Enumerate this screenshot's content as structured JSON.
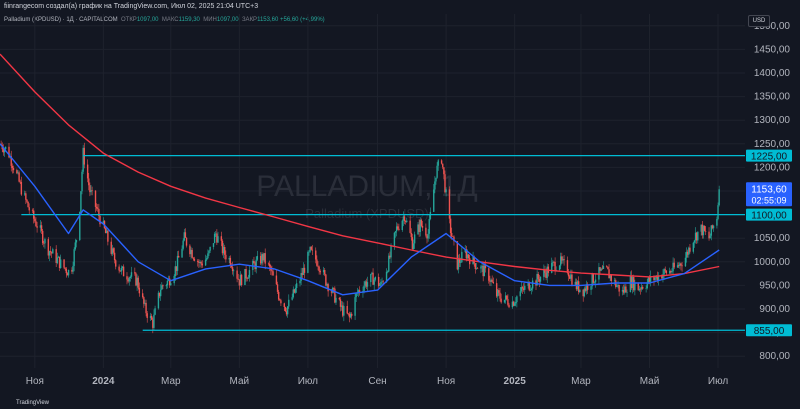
{
  "header": {
    "caption": "fiinrangecom создал(а) график на TradingView.com, Июл 02, 2025 21:04 UTC+3"
  },
  "legend": {
    "symbol": "Palladium (XPDUSD) · 1Д · CAPITALCOM",
    "open_label": "ОТКР",
    "open_value": "1097,00",
    "high_label": "МАКС",
    "high_value": "1159,30",
    "low_label": "МИН",
    "low_value": "1097,00",
    "close_label": "ЗАКР",
    "close_value": "1153,60",
    "change": "+56,60 (+4,99%)"
  },
  "currency_button": "USD",
  "watermark": {
    "title": "PALLADIUM, 1Д",
    "subtitle": "Palladium (XPDUSD)"
  },
  "footer": {
    "brand": "TradingView"
  },
  "colors": {
    "background": "#131722",
    "up": "#26a69a",
    "down": "#ef5350",
    "ma_fast": "#2962ff",
    "ma_slow": "#f23645",
    "level_line": "#00bcd4",
    "price_tag": "#2962ff"
  },
  "icons": [
    "tradingview-logo-icon"
  ],
  "chart_data": {
    "type": "candlestick",
    "instrument": "Palladium (XPDUSD)",
    "timeframe": "1Д",
    "y_axis": {
      "range": [
        775,
        1525
      ],
      "ticks": [
        "800,00",
        "850,00",
        "900,00",
        "950,00",
        "1000,00",
        "1050,00",
        "1100,00",
        "1150,00",
        "1200,00",
        "1250,00",
        "1300,00",
        "1350,00",
        "1400,00",
        "1450,00",
        "1500,00"
      ]
    },
    "x_axis": {
      "range": [
        "2023-10-01",
        "2025-07-25"
      ],
      "ticks": [
        {
          "date": "2023-11-01",
          "label": "Ноя"
        },
        {
          "date": "2024-01-01",
          "label": "2024"
        },
        {
          "date": "2024-03-01",
          "label": "Мар"
        },
        {
          "date": "2024-05-01",
          "label": "Май"
        },
        {
          "date": "2024-07-01",
          "label": "Июл"
        },
        {
          "date": "2024-09-01",
          "label": "Сен"
        },
        {
          "date": "2024-11-01",
          "label": "Ноя"
        },
        {
          "date": "2025-01-01",
          "label": "2025"
        },
        {
          "date": "2025-03-01",
          "label": "Мар"
        },
        {
          "date": "2025-05-01",
          "label": "Май"
        },
        {
          "date": "2025-07-01",
          "label": "Июл"
        }
      ]
    },
    "close_series": [
      [
        "2023-10-01",
        1250
      ],
      [
        "2023-10-08",
        1235
      ],
      [
        "2023-10-15",
        1190
      ],
      [
        "2023-10-22",
        1140
      ],
      [
        "2023-10-29",
        1100
      ],
      [
        "2023-11-05",
        1070
      ],
      [
        "2023-11-12",
        1030
      ],
      [
        "2023-11-19",
        1010
      ],
      [
        "2023-11-26",
        990
      ],
      [
        "2023-12-03",
        975
      ],
      [
        "2023-12-10",
        1080
      ],
      [
        "2023-12-14",
        1230
      ],
      [
        "2023-12-20",
        1150
      ],
      [
        "2023-12-27",
        1105
      ],
      [
        "2024-01-03",
        1060
      ],
      [
        "2024-01-10",
        1010
      ],
      [
        "2024-01-17",
        980
      ],
      [
        "2024-01-24",
        970
      ],
      [
        "2024-01-31",
        960
      ],
      [
        "2024-02-07",
        900
      ],
      [
        "2024-02-14",
        870
      ],
      [
        "2024-02-21",
        945
      ],
      [
        "2024-02-28",
        960
      ],
      [
        "2024-03-06",
        990
      ],
      [
        "2024-03-13",
        1050
      ],
      [
        "2024-03-20",
        1020
      ],
      [
        "2024-03-27",
        995
      ],
      [
        "2024-04-03",
        1010
      ],
      [
        "2024-04-10",
        1060
      ],
      [
        "2024-04-17",
        1020
      ],
      [
        "2024-04-24",
        1000
      ],
      [
        "2024-05-01",
        960
      ],
      [
        "2024-05-08",
        975
      ],
      [
        "2024-05-15",
        995
      ],
      [
        "2024-05-22",
        1010
      ],
      [
        "2024-05-29",
        980
      ],
      [
        "2024-06-05",
        930
      ],
      [
        "2024-06-12",
        900
      ],
      [
        "2024-06-19",
        935
      ],
      [
        "2024-06-26",
        975
      ],
      [
        "2024-07-03",
        1020
      ],
      [
        "2024-07-10",
        1000
      ],
      [
        "2024-07-17",
        960
      ],
      [
        "2024-07-24",
        930
      ],
      [
        "2024-07-31",
        900
      ],
      [
        "2024-08-07",
        880
      ],
      [
        "2024-08-14",
        935
      ],
      [
        "2024-08-21",
        955
      ],
      [
        "2024-08-28",
        965
      ],
      [
        "2024-09-04",
        950
      ],
      [
        "2024-09-11",
        1000
      ],
      [
        "2024-09-18",
        1070
      ],
      [
        "2024-09-25",
        1100
      ],
      [
        "2024-10-02",
        1040
      ],
      [
        "2024-10-09",
        1080
      ],
      [
        "2024-10-16",
        1060
      ],
      [
        "2024-10-23",
        1190
      ],
      [
        "2024-10-28",
        1220
      ],
      [
        "2024-11-04",
        1080
      ],
      [
        "2024-11-11",
        995
      ],
      [
        "2024-11-18",
        1020
      ],
      [
        "2024-11-25",
        1000
      ],
      [
        "2024-12-02",
        985
      ],
      [
        "2024-12-09",
        970
      ],
      [
        "2024-12-16",
        930
      ],
      [
        "2024-12-23",
        920
      ],
      [
        "2024-12-30",
        915
      ],
      [
        "2025-01-06",
        935
      ],
      [
        "2025-01-13",
        950
      ],
      [
        "2025-01-20",
        960
      ],
      [
        "2025-01-27",
        975
      ],
      [
        "2025-02-03",
        990
      ],
      [
        "2025-02-10",
        1000
      ],
      [
        "2025-02-17",
        985
      ],
      [
        "2025-02-24",
        950
      ],
      [
        "2025-03-03",
        940
      ],
      [
        "2025-03-10",
        960
      ],
      [
        "2025-03-17",
        975
      ],
      [
        "2025-03-24",
        980
      ],
      [
        "2025-03-31",
        955
      ],
      [
        "2025-04-07",
        935
      ],
      [
        "2025-04-14",
        960
      ],
      [
        "2025-04-21",
        945
      ],
      [
        "2025-04-28",
        955
      ],
      [
        "2025-05-05",
        965
      ],
      [
        "2025-05-12",
        975
      ],
      [
        "2025-05-19",
        980
      ],
      [
        "2025-05-26",
        990
      ],
      [
        "2025-06-02",
        1010
      ],
      [
        "2025-06-09",
        1050
      ],
      [
        "2025-06-16",
        1070
      ],
      [
        "2025-06-23",
        1050
      ],
      [
        "2025-06-30",
        1097
      ],
      [
        "2025-07-02",
        1153.6
      ]
    ],
    "ma_fast": [
      [
        "2023-10-01",
        1250
      ],
      [
        "2023-11-01",
        1160
      ],
      [
        "2023-12-01",
        1060
      ],
      [
        "2023-12-14",
        1110
      ],
      [
        "2024-01-01",
        1080
      ],
      [
        "2024-02-01",
        1000
      ],
      [
        "2024-03-01",
        960
      ],
      [
        "2024-04-01",
        985
      ],
      [
        "2024-05-01",
        995
      ],
      [
        "2024-06-01",
        985
      ],
      [
        "2024-07-01",
        960
      ],
      [
        "2024-08-01",
        930
      ],
      [
        "2024-09-01",
        940
      ],
      [
        "2024-10-01",
        1010
      ],
      [
        "2024-11-01",
        1060
      ],
      [
        "2024-12-01",
        1000
      ],
      [
        "2025-01-01",
        960
      ],
      [
        "2025-02-01",
        950
      ],
      [
        "2025-03-01",
        950
      ],
      [
        "2025-04-01",
        955
      ],
      [
        "2025-05-01",
        955
      ],
      [
        "2025-06-01",
        975
      ],
      [
        "2025-07-02",
        1025
      ]
    ],
    "ma_slow": [
      [
        "2023-10-01",
        1440
      ],
      [
        "2023-11-01",
        1360
      ],
      [
        "2023-12-01",
        1290
      ],
      [
        "2024-01-01",
        1230
      ],
      [
        "2024-02-01",
        1190
      ],
      [
        "2024-03-01",
        1160
      ],
      [
        "2024-04-01",
        1135
      ],
      [
        "2024-05-01",
        1115
      ],
      [
        "2024-06-01",
        1095
      ],
      [
        "2024-07-01",
        1075
      ],
      [
        "2024-08-01",
        1055
      ],
      [
        "2024-09-01",
        1040
      ],
      [
        "2024-10-01",
        1025
      ],
      [
        "2024-11-01",
        1010
      ],
      [
        "2024-12-01",
        1000
      ],
      [
        "2025-01-01",
        990
      ],
      [
        "2025-02-01",
        982
      ],
      [
        "2025-03-01",
        976
      ],
      [
        "2025-04-01",
        972
      ],
      [
        "2025-05-01",
        968
      ],
      [
        "2025-06-01",
        975
      ],
      [
        "2025-07-02",
        990
      ]
    ],
    "levels": [
      {
        "value": 1225,
        "label": "1225,00",
        "from": "2023-12-14"
      },
      {
        "value": 1100,
        "label": "1100,00",
        "from": "2023-10-20"
      },
      {
        "value": 855,
        "label": "855,00",
        "from": "2024-02-05"
      }
    ],
    "last_price": {
      "value": 1153.6,
      "label": "1153,60",
      "countdown": "02:55:09"
    }
  }
}
